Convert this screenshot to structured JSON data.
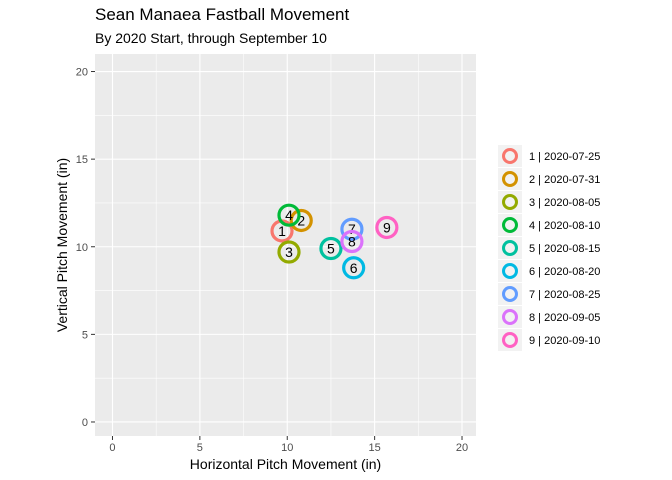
{
  "chart_data": {
    "type": "scatter",
    "title": "Sean Manaea Fastball Movement",
    "subtitle": "By 2020 Start, through September 10",
    "xlabel": "Horizontal Pitch Movement (in)",
    "ylabel": "Vertical Pitch Movement (in)",
    "xlim": [
      -1,
      20.8
    ],
    "ylim": [
      -0.8,
      21
    ],
    "xticks": [
      0,
      5,
      10,
      15,
      20
    ],
    "yticks": [
      0,
      5,
      10,
      15,
      20
    ],
    "grid": true,
    "legend_position": "right",
    "points": [
      {
        "label": "1",
        "legend": "1 | 2020-07-25",
        "x": 9.7,
        "y": 10.9,
        "color": "#F8766D"
      },
      {
        "label": "2",
        "legend": "2 | 2020-07-31",
        "x": 10.8,
        "y": 11.5,
        "color": "#D39200"
      },
      {
        "label": "3",
        "legend": "3 | 2020-08-05",
        "x": 10.1,
        "y": 9.7,
        "color": "#93AA00"
      },
      {
        "label": "4",
        "legend": "4 | 2020-08-10",
        "x": 10.1,
        "y": 11.8,
        "color": "#00BA38"
      },
      {
        "label": "5",
        "legend": "5 | 2020-08-15",
        "x": 12.5,
        "y": 9.9,
        "color": "#00C19F"
      },
      {
        "label": "6",
        "legend": "6 | 2020-08-20",
        "x": 13.8,
        "y": 8.8,
        "color": "#00B9E3"
      },
      {
        "label": "7",
        "legend": "7 | 2020-08-25",
        "x": 13.7,
        "y": 11.0,
        "color": "#619CFF"
      },
      {
        "label": "8",
        "legend": "8 | 2020-09-05",
        "x": 13.7,
        "y": 10.3,
        "color": "#DB72FB"
      },
      {
        "label": "9",
        "legend": "9 | 2020-09-10",
        "x": 15.7,
        "y": 11.1,
        "color": "#FF61C3"
      }
    ]
  }
}
